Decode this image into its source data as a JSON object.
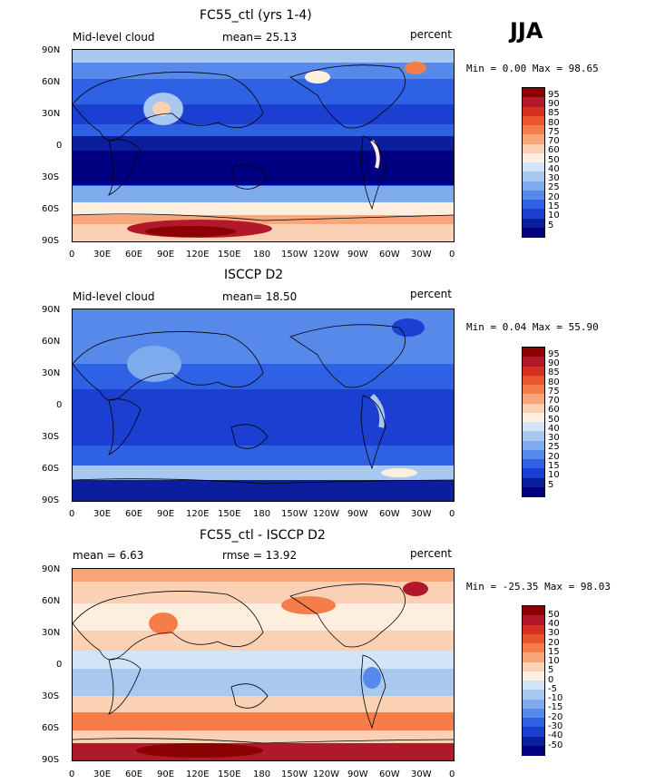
{
  "season": "JJA",
  "panels": [
    {
      "title": "FC55_ctl (yrs 1-4)",
      "left_label": "Mid-level cloud",
      "center_label": "mean=  25.13",
      "right_label": "percent",
      "stats": "Min =   0.00 Max =  98.65",
      "colorbar_levels": [
        "95",
        "90",
        "85",
        "80",
        "75",
        "70",
        "60",
        "50",
        "40",
        "30",
        "25",
        "20",
        "15",
        "10",
        "5"
      ],
      "colorbar_colors": [
        "#8b0000",
        "#b2182b",
        "#d6301f",
        "#e8552f",
        "#f47d4a",
        "#f9a57a",
        "#fbd1b5",
        "#fdeedd",
        "#d2e4f7",
        "#a8c8f0",
        "#7eaaee",
        "#5689ea",
        "#2f61e5",
        "#1a3fd1",
        "#0b1f9c",
        "#000080"
      ],
      "palette": [
        "#000080",
        "#0b1f9c",
        "#1a3fd1",
        "#2f61e5",
        "#5689ea",
        "#7eaaee",
        "#a8c8f0",
        "#d2e4f7",
        "#fdeedd",
        "#fbd1b5",
        "#f9a57a",
        "#f47d4a",
        "#e8552f",
        "#d6301f",
        "#b2182b",
        "#8b0000"
      ]
    },
    {
      "title": "ISCCP D2",
      "left_label": "Mid-level cloud",
      "center_label": "mean=  18.50",
      "right_label": "percent",
      "stats": "Min =   0.04 Max =  55.90",
      "colorbar_levels": [
        "95",
        "90",
        "85",
        "80",
        "75",
        "70",
        "60",
        "50",
        "40",
        "30",
        "25",
        "20",
        "15",
        "10",
        "5"
      ],
      "colorbar_colors": [
        "#8b0000",
        "#b2182b",
        "#d6301f",
        "#e8552f",
        "#f47d4a",
        "#f9a57a",
        "#fbd1b5",
        "#fdeedd",
        "#d2e4f7",
        "#a8c8f0",
        "#7eaaee",
        "#5689ea",
        "#2f61e5",
        "#1a3fd1",
        "#0b1f9c",
        "#000080"
      ]
    },
    {
      "title": "FC55_ctl - ISCCP D2",
      "left_label": "mean =    6.63",
      "center_label": "rmse =   13.92",
      "right_label": "percent",
      "stats": "Min = -25.35 Max =  98.03",
      "colorbar_levels": [
        "50",
        "40",
        "30",
        "20",
        "15",
        "10",
        "5",
        "0",
        "-5",
        "-10",
        "-15",
        "-20",
        "-30",
        "-40",
        "-50"
      ],
      "colorbar_colors": [
        "#8b0000",
        "#b2182b",
        "#d6301f",
        "#e8552f",
        "#f47d4a",
        "#f9a57a",
        "#fbd1b5",
        "#fdeedd",
        "#d2e4f7",
        "#a8c8f0",
        "#7eaaee",
        "#5689ea",
        "#2f61e5",
        "#1a3fd1",
        "#0b1f9c",
        "#000080"
      ]
    }
  ],
  "lat_labels": [
    "90N",
    "60N",
    "30N",
    "0",
    "30S",
    "60S",
    "90S"
  ],
  "lon_labels": [
    "0",
    "30E",
    "60E",
    "90E",
    "120E",
    "150E",
    "180",
    "150W",
    "120W",
    "90W",
    "60W",
    "30W",
    "0"
  ]
}
